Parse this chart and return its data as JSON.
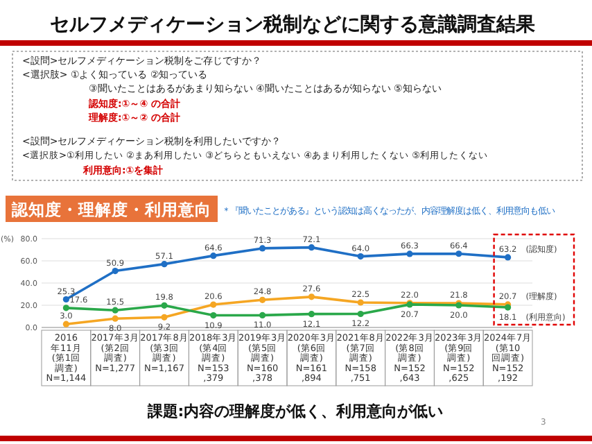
{
  "chart_data": {
    "type": "line",
    "title": "セルフメディケーション税制などに関する意識調査結果",
    "subtitle": "認知度・理解度・利用意向",
    "ylabel": "(%)",
    "categories": [
      "2016年11月\n(第1回調査)\nN=1,144",
      "2017年3月\n(第2回調査)\nN=1,277",
      "2017年8月\n(第3回調査)\nN=1,167",
      "2018年3月\n(第4回調査)\nN=153,379",
      "2019年3月\n(第5回調査)\nN=160,378",
      "2020年3月\n(第6回調査)\nN=161,894",
      "2021年8月\n(第7回調査)\nN=158,751",
      "2022年3月\n(第8回調査)\nN=152,643",
      "2023年3月\n(第9回調査)\nN=152,625",
      "2024年7月\n(第10回調査)\nN=152,192"
    ],
    "series": [
      {
        "name": "(認知度)",
        "color": "#1f6fc5",
        "values": [
          25.3,
          50.9,
          57.1,
          64.6,
          71.3,
          72.1,
          64.0,
          66.3,
          66.4,
          63.2
        ],
        "value_labels": [
          "25.3",
          "50.9",
          "57.1",
          "64.6",
          "71.3",
          "72.1",
          "64.0",
          "66.3",
          "66.4",
          "63.2"
        ]
      },
      {
        "name": "(理解度)",
        "color": "#f5a623",
        "values": [
          3.0,
          8.0,
          9.2,
          20.6,
          24.8,
          27.6,
          22.5,
          22.0,
          21.8,
          20.7
        ],
        "value_labels": [
          "3.0",
          "8.0",
          "9.2",
          "20.6",
          "24.8",
          "27.6",
          "22.5",
          "22.0",
          "21.8",
          "20.7"
        ]
      },
      {
        "name": "(利用意向)",
        "color": "#2aa84a",
        "values": [
          17.6,
          15.5,
          19.8,
          10.9,
          11.0,
          12.1,
          12.2,
          20.7,
          20.0,
          18.1
        ],
        "value_labels": [
          "17.6",
          "15.5",
          "19.8",
          "10.9",
          "11.0",
          "12.1",
          "12.2",
          "20.7",
          "20.0",
          "18.1"
        ]
      }
    ],
    "ylim": [
      0,
      80
    ],
    "yticks": [
      {
        "value": 0,
        "label": "0.0"
      },
      {
        "value": 20,
        "label": "20.0"
      },
      {
        "value": 40,
        "label": "40.0"
      },
      {
        "value": 60,
        "label": "60.0"
      },
      {
        "value": 80,
        "label": "80.0"
      }
    ],
    "grid": "y",
    "marker": "circle",
    "line_style": "solid",
    "annotations": [
      "<設問>セルフメディケーション税制をご存じですか？",
      "<選択肢> ①よく知っている ②知っている",
      "③聞いたことはあるがあまり知らない ④聞いたことはあるが知らない ⑤知らない",
      "認知度:①～④ の合計",
      "理解度:①～② の合計",
      "<設問>セルフメディケーション税制を利用したいですか？",
      "<選択肢>①利用したい ②まあ利用したい ③どちらともいえない ④あまり利用したくない ⑤利用したくない",
      "利用意向:①を集計",
      "＊『聞いたことがある』という認知は高くなったが、内容理解度は低く、利用意向も低い",
      "課題:内容の理解度が低く、利用意向が低い",
      "3"
    ]
  }
}
